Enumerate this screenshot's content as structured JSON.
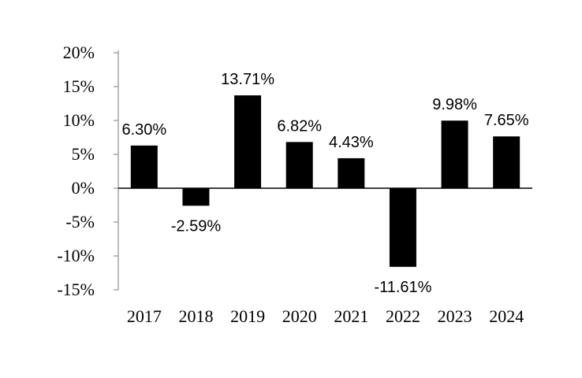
{
  "chart_data": {
    "type": "bar",
    "categories": [
      "2017",
      "2018",
      "2019",
      "2020",
      "2021",
      "2022",
      "2023",
      "2024"
    ],
    "values": [
      6.3,
      -2.59,
      13.71,
      6.82,
      4.43,
      -11.61,
      9.98,
      7.65
    ],
    "data_labels": [
      "6.30%",
      "-2.59%",
      "13.71%",
      "6.82%",
      "4.43%",
      "-11.61%",
      "9.98%",
      "7.65%"
    ],
    "ylim": [
      -15,
      20
    ],
    "yticks": [
      20,
      15,
      10,
      5,
      0,
      -5,
      -10,
      -15
    ],
    "ytick_labels": [
      "20%",
      "15%",
      "10%",
      "5%",
      "0%",
      "-5%",
      "-10%",
      "-15%"
    ],
    "grid": false,
    "legend": "none",
    "title": "",
    "xlabel": "",
    "ylabel": "",
    "colors": {
      "bar": "#000000",
      "axis": "#000000",
      "tick_axis": "#a6a6a6"
    }
  }
}
